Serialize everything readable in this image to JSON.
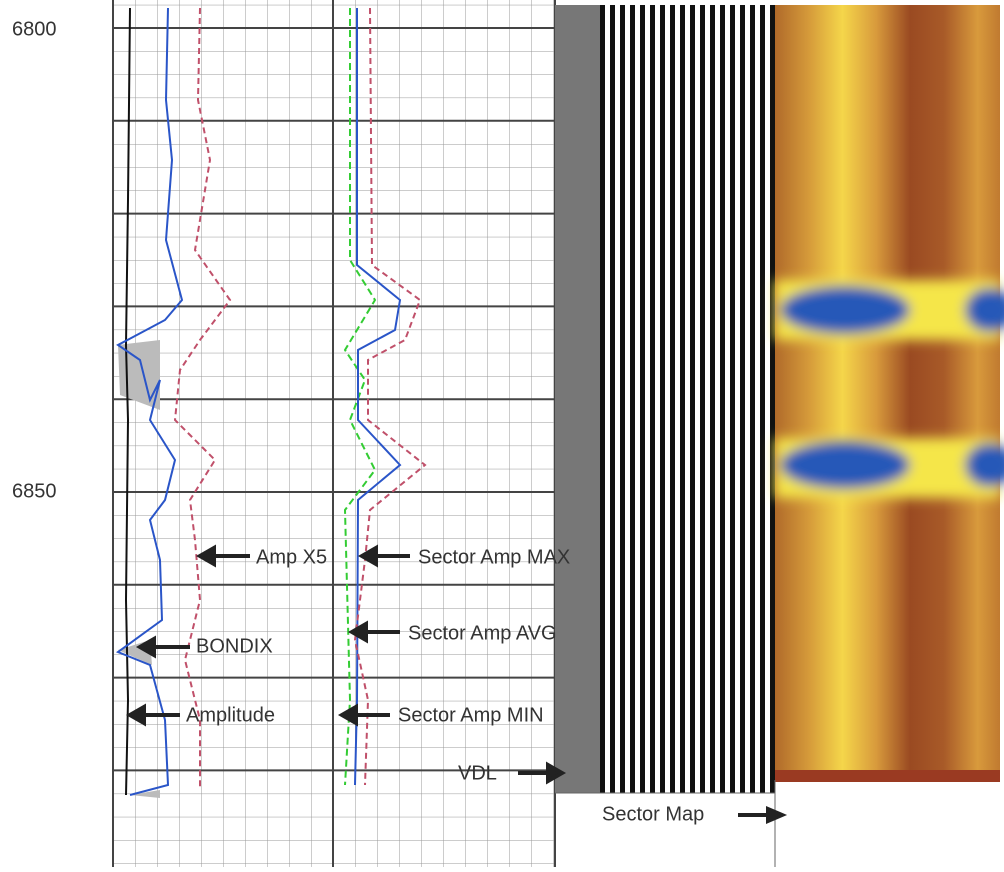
{
  "depth_labels": [
    "6800",
    "6850"
  ],
  "annotations": {
    "amp_x5": "Amp X5",
    "sector_amp_max": "Sector Amp MAX",
    "bondix": "BONDIX",
    "sector_amp_avg": "Sector Amp AVG",
    "amplitude": "Amplitude",
    "sector_amp_min": "Sector Amp MIN",
    "vdl": "VDL",
    "sector_map": "Sector Map"
  }
}
